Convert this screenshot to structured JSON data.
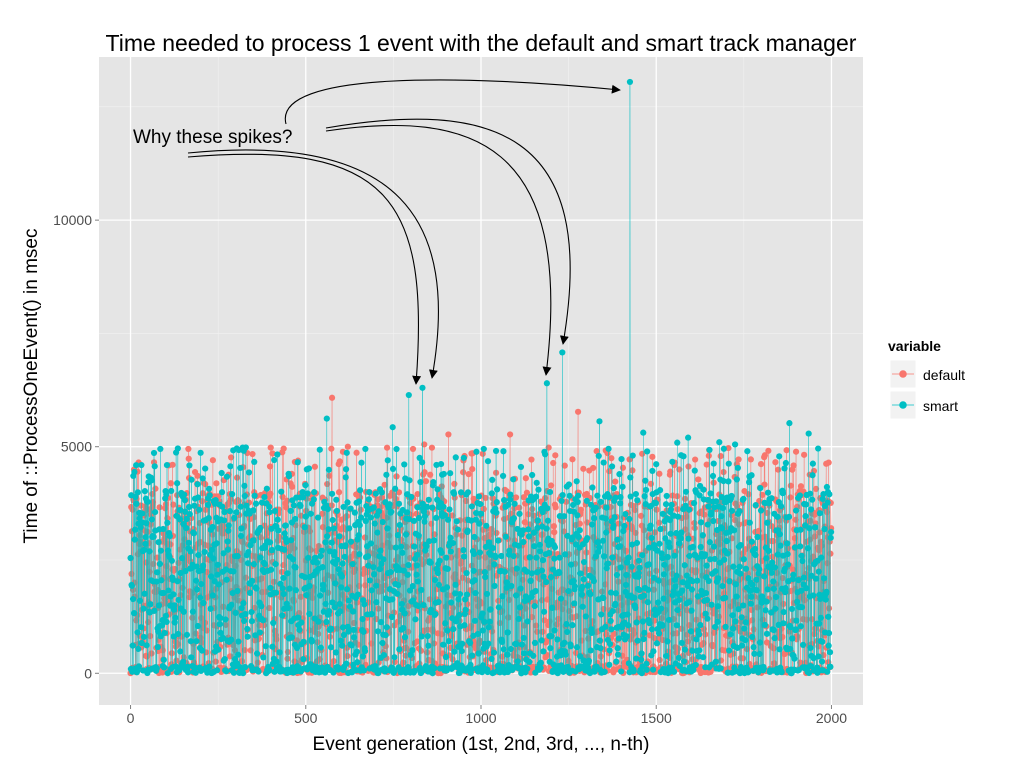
{
  "chart_data": {
    "type": "scatter",
    "title": "Time needed to process 1 event with the default and smart track manager",
    "xlabel": "Event generation (1st, 2nd, 3rd, ..., n-th)",
    "ylabel": "Time of ::ProcessOneEvent() in msec",
    "xlim": [
      -90,
      2090
    ],
    "ylim": [
      -700,
      13600
    ],
    "x_ticks": [
      0,
      500,
      1000,
      1500,
      2000
    ],
    "x_tick_labels": [
      "0",
      "500",
      "1000",
      "1500",
      "2000"
    ],
    "y_ticks": [
      0,
      5000,
      10000
    ],
    "y_tick_labels": [
      "0",
      "5000",
      "10000"
    ],
    "grid": true,
    "legend": {
      "title": "variable",
      "position": "right",
      "entries": [
        {
          "name": "default",
          "color": "#F8766D"
        },
        {
          "name": "smart",
          "color": "#00BFC4"
        }
      ]
    },
    "series": [
      {
        "name": "default",
        "color": "#F8766D",
        "n_points": 2000,
        "range": [
          0,
          5000
        ],
        "notable_points": [
          {
            "x": 575,
            "y": 6080
          },
          {
            "x": 1277,
            "y": 5770
          },
          {
            "x": 838,
            "y": 5050
          },
          {
            "x": 907,
            "y": 5270
          },
          {
            "x": 1083,
            "y": 5270
          },
          {
            "x": 973,
            "y": 4850
          },
          {
            "x": 1206,
            "y": 4640
          },
          {
            "x": 1383,
            "y": 4230
          },
          {
            "x": 1424,
            "y": 4720
          },
          {
            "x": 1706,
            "y": 4970
          },
          {
            "x": 1770,
            "y": 4720
          },
          {
            "x": 1808,
            "y": 4770
          },
          {
            "x": 1922,
            "y": 4820
          },
          {
            "x": 1992,
            "y": 4650
          },
          {
            "x": 20,
            "y": 4450
          },
          {
            "x": 165,
            "y": 4950
          },
          {
            "x": 333,
            "y": 4860
          },
          {
            "x": 620,
            "y": 5000
          },
          {
            "x": 460,
            "y": 4400
          },
          {
            "x": 1540,
            "y": 4450
          },
          {
            "x": 120,
            "y": 4600
          },
          {
            "x": 1650,
            "y": 4800
          }
        ]
      },
      {
        "name": "smart",
        "color": "#00BFC4",
        "n_points": 2000,
        "range": [
          0,
          5000
        ],
        "notable_points": [
          {
            "x": 1425,
            "y": 13050
          },
          {
            "x": 1232,
            "y": 7080
          },
          {
            "x": 1188,
            "y": 6400
          },
          {
            "x": 833,
            "y": 6300
          },
          {
            "x": 794,
            "y": 6140
          },
          {
            "x": 560,
            "y": 5620
          },
          {
            "x": 1338,
            "y": 5560
          },
          {
            "x": 1880,
            "y": 5520
          },
          {
            "x": 748,
            "y": 5430
          },
          {
            "x": 1463,
            "y": 5310
          },
          {
            "x": 1935,
            "y": 5290
          },
          {
            "x": 1591,
            "y": 5200
          },
          {
            "x": 1680,
            "y": 5100
          },
          {
            "x": 1560,
            "y": 5090
          },
          {
            "x": 1725,
            "y": 5050
          },
          {
            "x": 85,
            "y": 4950
          },
          {
            "x": 320,
            "y": 4980
          },
          {
            "x": 670,
            "y": 4950
          },
          {
            "x": 1020,
            "y": 4680
          },
          {
            "x": 1350,
            "y": 4650
          },
          {
            "x": 1760,
            "y": 4900
          },
          {
            "x": 1990,
            "y": 4000
          }
        ]
      }
    ],
    "annotations": [
      {
        "text": "Why these spikes?",
        "x": 0,
        "y": 11800
      }
    ]
  }
}
